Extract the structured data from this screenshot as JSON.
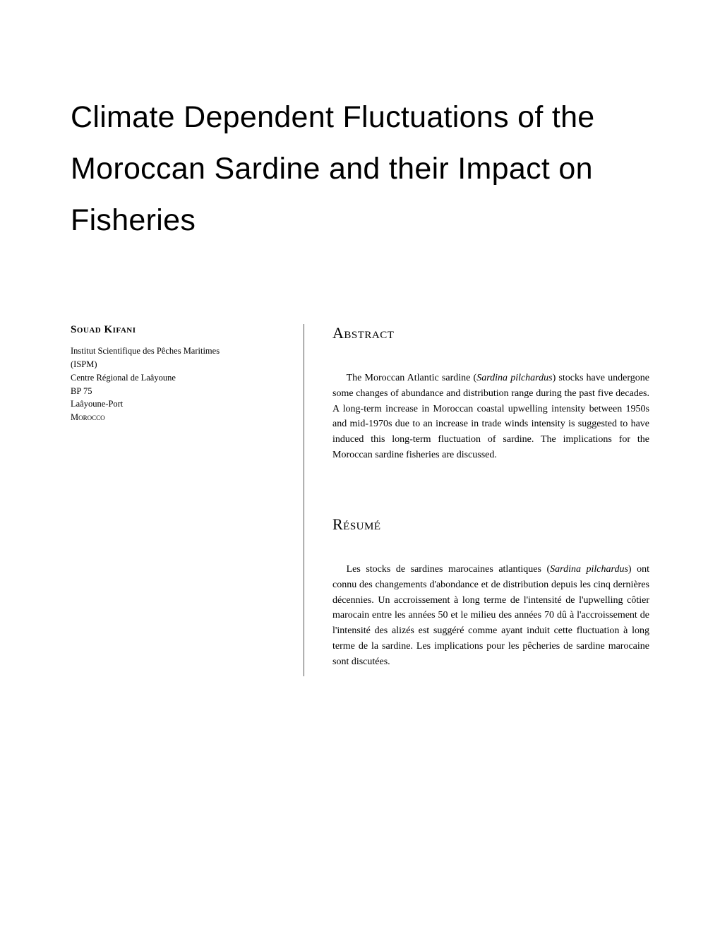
{
  "title": "Climate Dependent Fluctuations of the Moroccan Sardine and their Impact on Fisheries",
  "author": {
    "name": "Souad Kifani",
    "affiliation_lines": [
      "Institut Scientifique des Pêches Maritimes",
      "(ISPM)",
      "Centre Régional de Laâyoune",
      "BP 75",
      "Laâyoune-Port",
      "Morocco"
    ]
  },
  "sections": {
    "abstract": {
      "heading": "Abstract",
      "body_prefix": "The Moroccan Atlantic sardine (",
      "species": "Sardina pilchardus",
      "body_suffix": ") stocks have undergone some changes of abundance and distribution range during the past five decades. A long-term increase in Moroccan coastal upwelling intensity between 1950s and mid-1970s due to an increase in trade winds intensity is suggested to have induced this long-term fluctuation of sardine. The implications for the Moroccan sardine fisheries are discussed."
    },
    "resume": {
      "heading": "Résumé",
      "body_prefix": "Les stocks de sardines marocaines atlantiques (",
      "species": "Sardina pilchardus",
      "body_suffix": ") ont connu des changements d'abondance et de distribution depuis les cinq dernières décennies. Un accroissement à long terme de l'intensité de l'upwelling côtier marocain entre les années 50 et le milieu des années 70 dû à l'accroissement de l'intensité des alizés est suggéré comme ayant induit cette fluctuation à long terme de la sardine. Les implications pour les pêcheries de sardine marocaine sont discutées."
    }
  }
}
